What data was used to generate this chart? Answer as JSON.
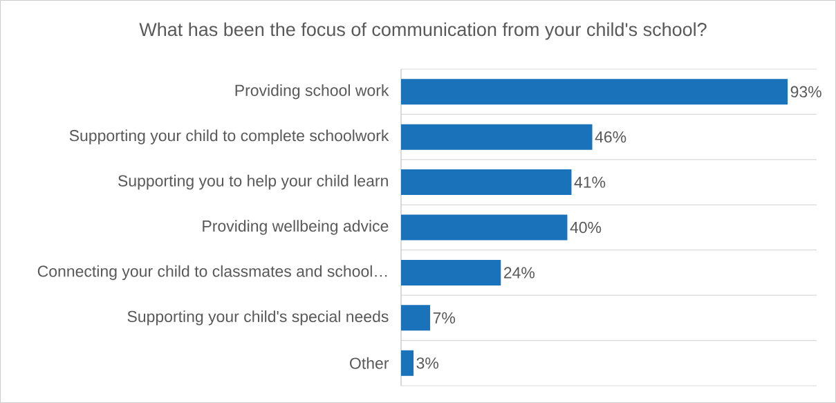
{
  "chart_data": {
    "type": "bar",
    "orientation": "horizontal",
    "title": "What has been the focus of communication from your child's school?",
    "categories": [
      "Providing school work",
      "Supporting your child to complete schoolwork",
      "Supporting you to help your child learn",
      "Providing wellbeing advice",
      "Connecting your child to classmates and school…",
      "Supporting your child's special needs",
      "Other"
    ],
    "values": [
      93,
      46,
      41,
      40,
      24,
      7,
      3
    ],
    "value_labels": [
      "93%",
      "46%",
      "41%",
      "40%",
      "24%",
      "7%",
      "3%"
    ],
    "color": "#1a72ba",
    "grid": "y"
  }
}
